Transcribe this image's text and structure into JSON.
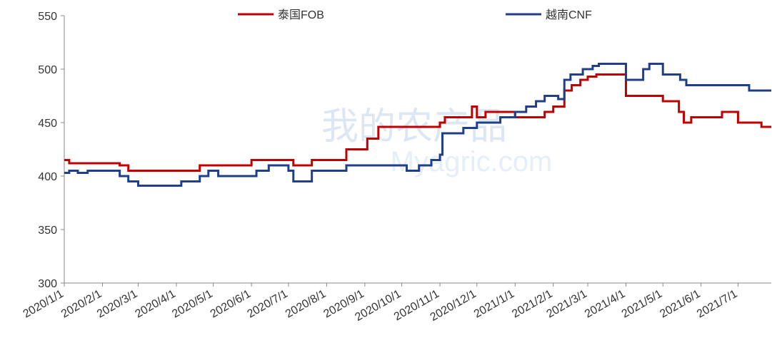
{
  "chart_data": {
    "type": "line",
    "step": true,
    "watermark": [
      "我的农产品",
      "Myagric.com"
    ],
    "xlim": [
      "2020/1/1",
      "2021/7/28"
    ],
    "xticks": [
      "2020/1/1",
      "2020/2/1",
      "2020/3/1",
      "2020/4/1",
      "2020/5/1",
      "2020/6/1",
      "2020/7/1",
      "2020/8/1",
      "2020/9/1",
      "2020/10/1",
      "2020/11/1",
      "2020/12/1",
      "2021/1/1",
      "2021/2/1",
      "2021/3/1",
      "2021/4/1",
      "2021/5/1",
      "2021/6/1",
      "2021/7/1"
    ],
    "ylim": [
      300,
      550
    ],
    "yticks": [
      300,
      350,
      400,
      450,
      500,
      550
    ],
    "series": [
      {
        "name": "泰国FOB",
        "color": "#c00000",
        "x": [
          "2020/1/1",
          "2020/1/5",
          "2020/2/15",
          "2020/2/22",
          "2020/4/20",
          "2020/6/1",
          "2020/7/5",
          "2020/7/20",
          "2020/8/17",
          "2020/9/3",
          "2020/9/12",
          "2020/11/1",
          "2020/11/5",
          "2020/11/27",
          "2020/12/1",
          "2020/12/8",
          "2021/1/1",
          "2021/1/25",
          "2021/2/1",
          "2021/2/10",
          "2021/2/16",
          "2021/2/23",
          "2021/3/1",
          "2021/3/8",
          "2021/4/1",
          "2021/5/1",
          "2021/5/14",
          "2021/5/18",
          "2021/5/24",
          "2021/6/18",
          "2021/7/1",
          "2021/7/20",
          "2021/7/28"
        ],
        "values": [
          415,
          412,
          410,
          405,
          410,
          415,
          410,
          415,
          425,
          435,
          446,
          450,
          455,
          465,
          455,
          460,
          455,
          460,
          465,
          480,
          485,
          490,
          493,
          495,
          475,
          470,
          460,
          450,
          455,
          460,
          450,
          446,
          446
        ]
      },
      {
        "name": "越南CNF",
        "color": "#1f3f8a",
        "x": [
          "2020/1/1",
          "2020/1/5",
          "2020/1/12",
          "2020/1/20",
          "2020/2/15",
          "2020/2/22",
          "2020/3/1",
          "2020/4/5",
          "2020/4/20",
          "2020/4/27",
          "2020/5/5",
          "2020/6/5",
          "2020/6/15",
          "2020/7/1",
          "2020/7/5",
          "2020/7/20",
          "2020/8/17",
          "2020/10/5",
          "2020/10/15",
          "2020/10/25",
          "2020/11/1",
          "2020/11/3",
          "2020/11/20",
          "2020/12/1",
          "2020/12/20",
          "2021/1/1",
          "2021/1/10",
          "2021/1/18",
          "2021/1/25",
          "2021/2/5",
          "2021/2/10",
          "2021/2/15",
          "2021/2/25",
          "2021/3/5",
          "2021/3/10",
          "2021/4/1",
          "2021/4/15",
          "2021/4/20",
          "2021/5/1",
          "2021/5/15",
          "2021/5/20",
          "2021/7/10",
          "2021/7/28"
        ],
        "values": [
          403,
          405,
          403,
          405,
          400,
          395,
          391,
          395,
          400,
          405,
          400,
          405,
          410,
          405,
          395,
          405,
          410,
          405,
          410,
          415,
          420,
          440,
          445,
          450,
          455,
          460,
          465,
          470,
          475,
          472,
          490,
          495,
          500,
          503,
          505,
          490,
          500,
          505,
          495,
          490,
          485,
          480,
          480
        ]
      }
    ]
  }
}
